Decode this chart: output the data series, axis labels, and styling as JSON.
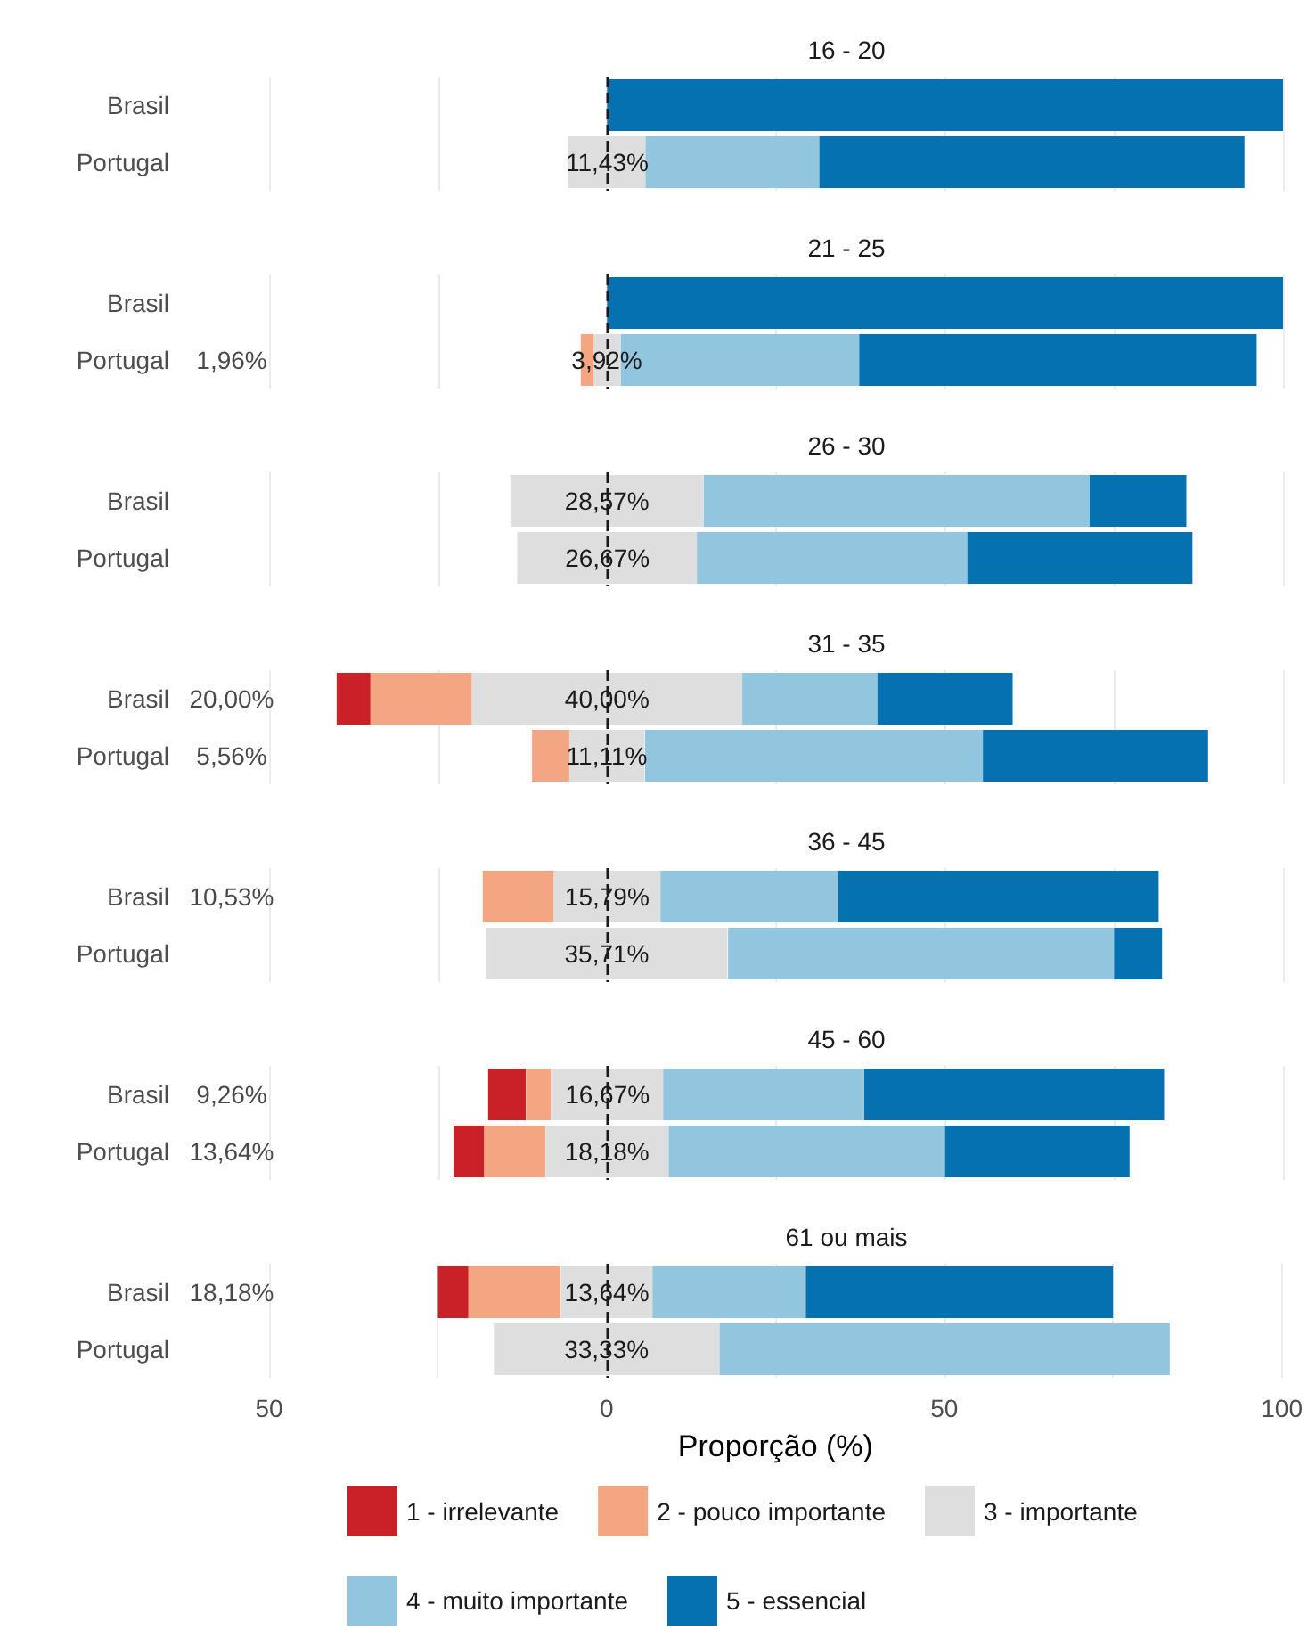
{
  "chart_data": [
    {
      "type": "bar",
      "orientation": "horizontal",
      "title": "16 - 20",
      "categories": [
        "Brasil",
        "Portugal"
      ],
      "series": [
        {
          "color": "#ca2027",
          "values": [
            null,
            null
          ],
          "base": [
            null,
            null
          ]
        },
        {
          "color": "#f4a582",
          "values": [
            null,
            null
          ],
          "base": [
            null,
            null
          ]
        },
        {
          "color": "#dedede",
          "values": [
            null,
            11.43
          ],
          "base": [
            null,
            -5.7
          ],
          "value_labels": [
            null,
            "11,43%"
          ]
        },
        {
          "color": "#92c5de",
          "values": [
            null,
            25.7
          ],
          "base": [
            null,
            5.7
          ]
        },
        {
          "color": "#0571b0",
          "values": [
            100,
            62.9
          ],
          "base": [
            0,
            31.4
          ]
        }
      ],
      "xlim": [
        -50,
        100
      ],
      "xticks": [
        -50,
        -25,
        0,
        25,
        50,
        75,
        100
      ],
      "grid": "x",
      "tick_labels": "y",
      "ref_lines": [
        {
          "axis": "x",
          "value": 0,
          "color": "#1a1a1a",
          "line_style": "dashed"
        }
      ]
    },
    {
      "type": "bar",
      "orientation": "horizontal",
      "title": "21 - 25",
      "categories": [
        "Brasil",
        "Portugal"
      ],
      "series": [
        {
          "color": "#ca2027",
          "values": [
            null,
            null
          ],
          "base": [
            null,
            null
          ]
        },
        {
          "color": "#f4a582",
          "values": [
            null,
            1.96
          ],
          "base": [
            null,
            -3.9
          ]
        },
        {
          "color": "#dedede",
          "values": [
            null,
            3.92
          ],
          "base": [
            null,
            -2.0
          ],
          "value_labels": [
            null,
            "3,92%"
          ]
        },
        {
          "color": "#92c5de",
          "values": [
            null,
            35.3
          ],
          "base": [
            null,
            2.0
          ]
        },
        {
          "color": "#0571b0",
          "values": [
            100,
            58.8
          ],
          "base": [
            0,
            37.3
          ]
        }
      ],
      "annotations": [
        "1,96%"
      ],
      "xlim": [
        -50,
        100
      ],
      "xticks": [
        -50,
        -25,
        0,
        25,
        50,
        75,
        100
      ],
      "grid": "x",
      "tick_labels": "y",
      "ref_lines": [
        {
          "axis": "x",
          "value": 0,
          "color": "#1a1a1a",
          "line_style": "dashed"
        }
      ]
    },
    {
      "type": "bar",
      "orientation": "horizontal",
      "title": "26 - 30",
      "categories": [
        "Brasil",
        "Portugal"
      ],
      "series": [
        {
          "color": "#ca2027",
          "values": [
            null,
            null
          ],
          "base": [
            null,
            null
          ]
        },
        {
          "color": "#f4a582",
          "values": [
            null,
            null
          ],
          "base": [
            null,
            null
          ]
        },
        {
          "color": "#dedede",
          "values": [
            28.57,
            26.67
          ],
          "base": [
            -14.3,
            -13.3
          ],
          "value_labels": [
            "28,57%",
            "26,67%"
          ]
        },
        {
          "color": "#92c5de",
          "values": [
            57.1,
            40
          ],
          "base": [
            14.3,
            13.3
          ]
        },
        {
          "color": "#0571b0",
          "values": [
            14.3,
            33.3
          ],
          "base": [
            71.4,
            53.3
          ]
        }
      ],
      "xlim": [
        -50,
        100
      ],
      "xticks": [
        -50,
        -25,
        0,
        25,
        50,
        75,
        100
      ],
      "grid": "x",
      "tick_labels": "y",
      "ref_lines": [
        {
          "axis": "x",
          "value": 0,
          "color": "#1a1a1a",
          "line_style": "dashed"
        }
      ]
    },
    {
      "type": "bar",
      "orientation": "horizontal",
      "title": "31 - 35",
      "categories": [
        "Brasil",
        "Portugal"
      ],
      "series": [
        {
          "color": "#ca2027",
          "values": [
            5,
            null
          ],
          "base": [
            -40,
            null
          ]
        },
        {
          "color": "#f4a582",
          "values": [
            15,
            5.56
          ],
          "base": [
            -35,
            -11.1
          ]
        },
        {
          "color": "#dedede",
          "values": [
            40,
            11.11
          ],
          "base": [
            -20,
            -5.6
          ],
          "value_labels": [
            "40,00%",
            "11,11%"
          ]
        },
        {
          "color": "#92c5de",
          "values": [
            20,
            50
          ],
          "base": [
            20,
            5.6
          ]
        },
        {
          "color": "#0571b0",
          "values": [
            20,
            33.3
          ],
          "base": [
            40,
            55.6
          ]
        }
      ],
      "annotations": [
        "20,00%",
        "5,56%"
      ],
      "xlim": [
        -50,
        100
      ],
      "xticks": [
        -50,
        -25,
        0,
        25,
        50,
        75,
        100
      ],
      "grid": "x",
      "tick_labels": "y",
      "ref_lines": [
        {
          "axis": "x",
          "value": 0,
          "color": "#1a1a1a",
          "line_style": "dashed"
        }
      ]
    },
    {
      "type": "bar",
      "orientation": "horizontal",
      "title": "36 - 45",
      "categories": [
        "Brasil",
        "Portugal"
      ],
      "series": [
        {
          "color": "#ca2027",
          "values": [
            null,
            null
          ],
          "base": [
            null,
            null
          ]
        },
        {
          "color": "#f4a582",
          "values": [
            10.53,
            null
          ],
          "base": [
            -18.4,
            null
          ]
        },
        {
          "color": "#dedede",
          "values": [
            15.79,
            35.71
          ],
          "base": [
            -7.9,
            -17.9
          ],
          "value_labels": [
            "15,79%",
            "35,71%"
          ]
        },
        {
          "color": "#92c5de",
          "values": [
            26.3,
            57.1
          ],
          "base": [
            7.9,
            17.9
          ]
        },
        {
          "color": "#0571b0",
          "values": [
            47.4,
            7.1
          ],
          "base": [
            34.2,
            75
          ]
        }
      ],
      "annotations": [
        "10,53%"
      ],
      "xlim": [
        -50,
        100
      ],
      "xticks": [
        -50,
        -25,
        0,
        25,
        50,
        75,
        100
      ],
      "grid": "x",
      "tick_labels": "y",
      "ref_lines": [
        {
          "axis": "x",
          "value": 0,
          "color": "#1a1a1a",
          "line_style": "dashed"
        }
      ]
    },
    {
      "type": "bar",
      "orientation": "horizontal",
      "title": "45 - 60",
      "categories": [
        "Brasil",
        "Portugal"
      ],
      "series": [
        {
          "color": "#ca2027",
          "values": [
            5.56,
            4.55
          ],
          "base": [
            -17.6,
            -22.7
          ]
        },
        {
          "color": "#f4a582",
          "values": [
            3.7,
            9.09
          ],
          "base": [
            -12,
            -18.2
          ]
        },
        {
          "color": "#dedede",
          "values": [
            16.67,
            18.18
          ],
          "base": [
            -8.3,
            -9.1
          ],
          "value_labels": [
            "16,67%",
            "18,18%"
          ]
        },
        {
          "color": "#92c5de",
          "values": [
            29.6,
            40.9
          ],
          "base": [
            8.3,
            9.1
          ]
        },
        {
          "color": "#0571b0",
          "values": [
            44.4,
            27.3
          ],
          "base": [
            38,
            50
          ]
        }
      ],
      "annotations": [
        "9,26%",
        "13,64%"
      ],
      "xlim": [
        -50,
        100
      ],
      "xticks": [
        -50,
        -25,
        0,
        25,
        50,
        75,
        100
      ],
      "grid": "x",
      "tick_labels": "y",
      "ref_lines": [
        {
          "axis": "x",
          "value": 0,
          "color": "#1a1a1a",
          "line_style": "dashed"
        }
      ]
    },
    {
      "type": "bar",
      "orientation": "horizontal",
      "title": "61 ou mais",
      "xlabel": "Proporção (%)",
      "categories": [
        "Brasil",
        "Portugal"
      ],
      "series": [
        {
          "name": "1 - irrelevante",
          "color": "#ca2027",
          "values": [
            4.55,
            null
          ],
          "base": [
            -25,
            null
          ]
        },
        {
          "name": "2 - pouco importante",
          "color": "#f4a582",
          "values": [
            13.64,
            null
          ],
          "base": [
            -20.5,
            null
          ]
        },
        {
          "name": "3 - importante",
          "color": "#dedede",
          "values": [
            13.64,
            33.33
          ],
          "base": [
            -6.8,
            -16.7
          ],
          "value_labels": [
            "13,64%",
            "33,33%"
          ]
        },
        {
          "name": "4 - muito importante",
          "color": "#92c5de",
          "values": [
            22.7,
            66.7
          ],
          "base": [
            6.8,
            16.7
          ]
        },
        {
          "name": "5 - essencial",
          "color": "#0571b0",
          "values": [
            45.5,
            null
          ],
          "base": [
            29.5,
            null
          ]
        }
      ],
      "annotations": [
        "18,18%"
      ],
      "xlim": [
        -50,
        100
      ],
      "xticks": [
        {
          "value": -50,
          "label": "50"
        },
        {
          "value": -25,
          "label": null
        },
        0,
        {
          "value": 25,
          "label": null
        },
        50,
        {
          "value": 75,
          "label": null
        },
        100
      ],
      "grid": "x",
      "legend": "bottom",
      "ref_lines": [
        {
          "axis": "x",
          "value": 0,
          "color": "#1a1a1a",
          "line_style": "dashed"
        }
      ]
    }
  ]
}
